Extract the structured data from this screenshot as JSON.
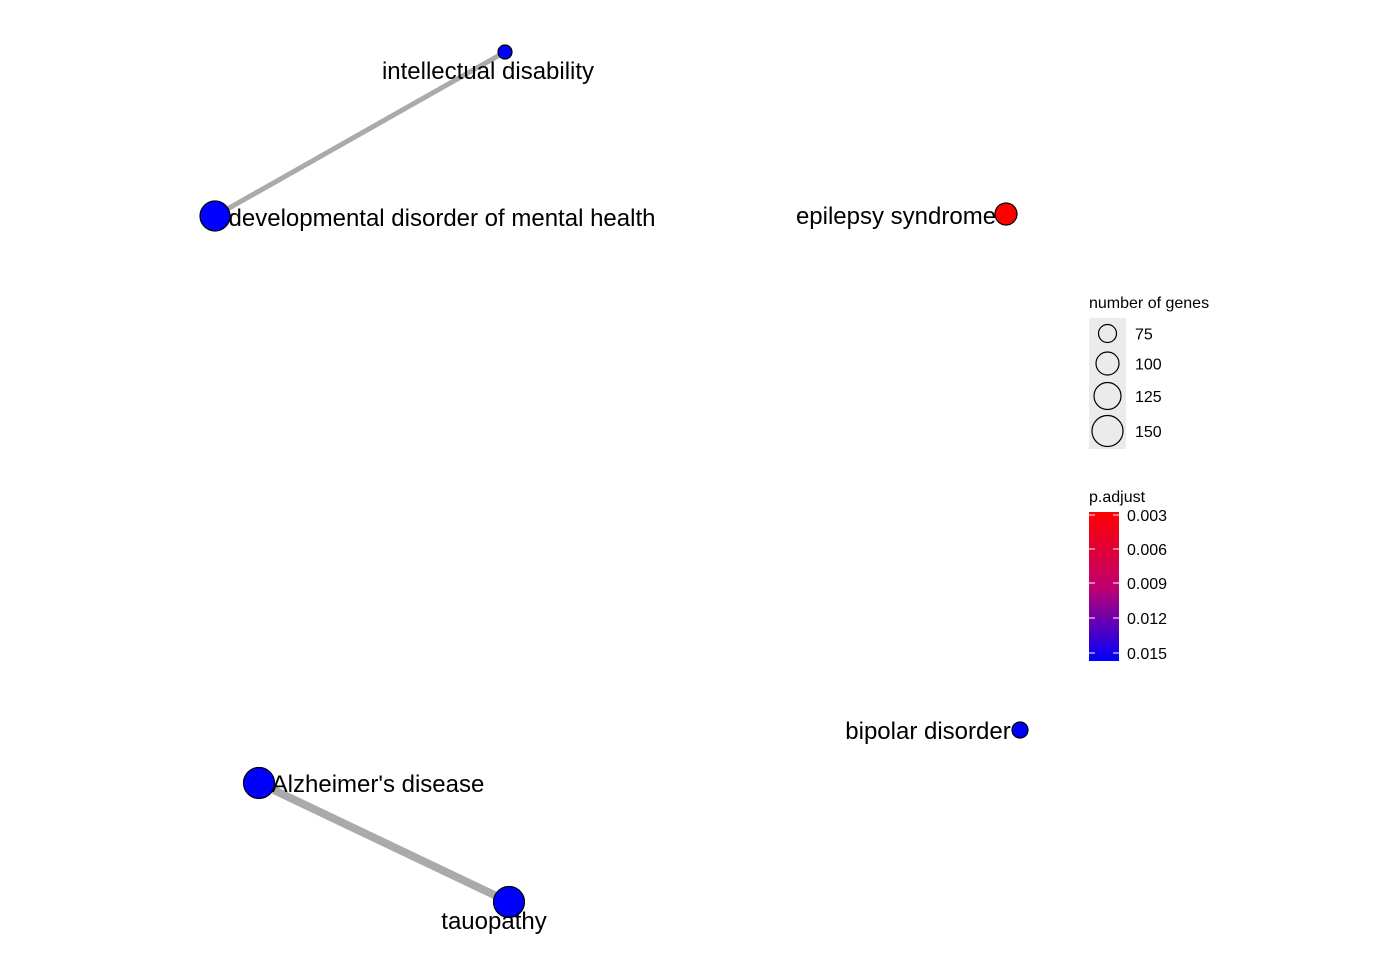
{
  "network": {
    "edge_color": "#aaaaaa",
    "node_outline": "#000000",
    "nodes": [
      {
        "id": "intellectual-disability",
        "label": "intellectual disability",
        "p_adjust": 0.0155,
        "gene_count": 62
      },
      {
        "id": "developmental-disorder",
        "label": "developmental disorder of mental health",
        "p_adjust": 0.0155,
        "gene_count": 140
      },
      {
        "id": "epilepsy-syndrome",
        "label": "epilepsy syndrome",
        "p_adjust": 0.003,
        "gene_count": 92
      },
      {
        "id": "bipolar-disorder",
        "label": "bipolar disorder",
        "p_adjust": 0.0155,
        "gene_count": 66
      },
      {
        "id": "alzheimers-disease",
        "label": "Alzheimer's disease",
        "p_adjust": 0.0155,
        "gene_count": 150
      },
      {
        "id": "tauopathy",
        "label": "tauopathy",
        "p_adjust": 0.0155,
        "gene_count": 150
      }
    ],
    "edges": [
      {
        "source": "intellectual-disability",
        "target": "developmental-disorder",
        "weight": "thin"
      },
      {
        "source": "alzheimers-disease",
        "target": "tauopathy",
        "weight": "thick"
      }
    ]
  },
  "legend_size": {
    "title": "number of genes",
    "entries": [
      {
        "label": "75",
        "value": 75
      },
      {
        "label": "100",
        "value": 100
      },
      {
        "label": "125",
        "value": 125
      },
      {
        "label": "150",
        "value": 150
      }
    ]
  },
  "legend_color": {
    "title": "p.adjust",
    "color_low": "#ff0000",
    "color_high": "#0000ff",
    "ticks": [
      {
        "label": "0.003",
        "value": 0.003
      },
      {
        "label": "0.006",
        "value": 0.006
      },
      {
        "label": "0.009",
        "value": 0.009
      },
      {
        "label": "0.012",
        "value": 0.012
      },
      {
        "label": "0.015",
        "value": 0.015
      }
    ]
  }
}
